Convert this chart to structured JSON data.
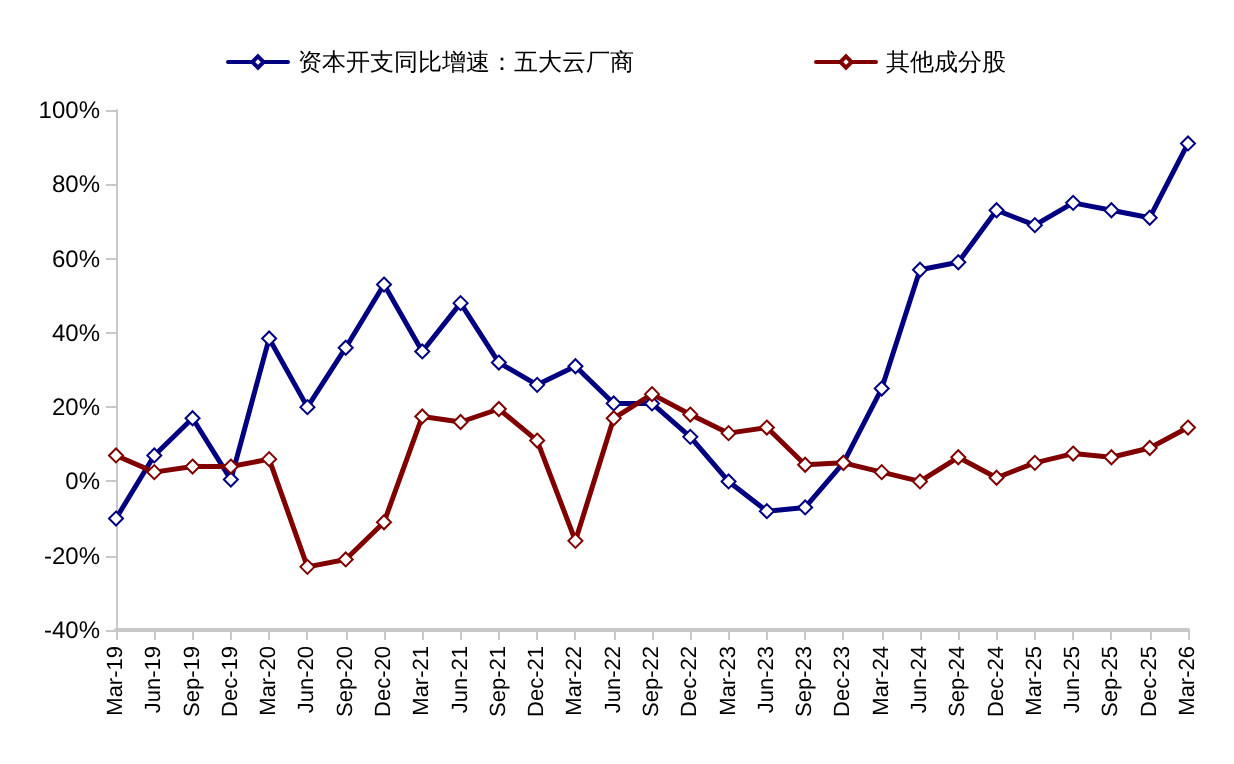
{
  "chart_data": {
    "type": "line",
    "categories": [
      "Mar-19",
      "Jun-19",
      "Sep-19",
      "Dec-19",
      "Mar-20",
      "Jun-20",
      "Sep-20",
      "Dec-20",
      "Mar-21",
      "Jun-21",
      "Sep-21",
      "Dec-21",
      "Mar-22",
      "Jun-22",
      "Sep-22",
      "Dec-22",
      "Mar-23",
      "Jun-23",
      "Sep-23",
      "Dec-23",
      "Mar-24",
      "Jun-24",
      "Sep-24",
      "Dec-24",
      "Mar-25",
      "Jun-25",
      "Sep-25",
      "Dec-25",
      "Mar-26"
    ],
    "series": [
      {
        "name": "资本开支同比增速：五大云厂商",
        "color": "#000080",
        "values": [
          -10,
          7,
          17,
          0.5,
          38.5,
          20,
          36,
          53,
          35,
          48,
          32,
          26,
          31,
          21,
          21,
          12,
          0,
          -8,
          -7,
          5,
          25,
          57,
          59,
          73,
          69,
          75,
          73,
          71,
          91
        ]
      },
      {
        "name": "其他成分股",
        "color": "#800000",
        "values": [
          7,
          2.5,
          4,
          4,
          6,
          -23,
          -21,
          -11,
          17.5,
          16,
          19.5,
          11,
          -16,
          17,
          23.5,
          18,
          13,
          14.5,
          4.5,
          5,
          2.5,
          0,
          6.5,
          1,
          5,
          7.5,
          6.5,
          9,
          14.5
        ]
      }
    ],
    "ylim": [
      -40,
      100
    ],
    "yticks": [
      {
        "value": -40,
        "label": "-40%"
      },
      {
        "value": -20,
        "label": "-20%"
      },
      {
        "value": 0,
        "label": "0%"
      },
      {
        "value": 20,
        "label": "20%"
      },
      {
        "value": 40,
        "label": "40%"
      },
      {
        "value": 60,
        "label": "60%"
      },
      {
        "value": 80,
        "label": "80%"
      },
      {
        "value": 100,
        "label": "100%"
      }
    ],
    "grid": false,
    "legend": "top",
    "marker": "diamond",
    "line_style": "solid"
  }
}
